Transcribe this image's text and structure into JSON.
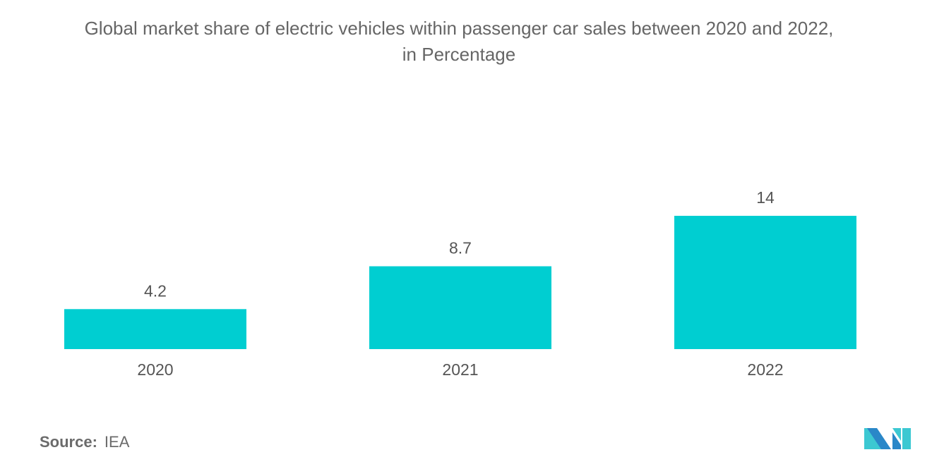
{
  "chart_data": {
    "type": "bar",
    "title": "Global market share of electric vehicles within passenger car sales between 2020 and 2022,",
    "subtitle": "in Percentage",
    "categories": [
      "2020",
      "2021",
      "2022"
    ],
    "values": [
      4.2,
      8.7,
      14
    ],
    "data_labels": [
      "4.2",
      "8.7",
      "14"
    ],
    "xlabel": "",
    "ylabel": "",
    "ylim": [
      0,
      14
    ],
    "grid": false,
    "legend": "none",
    "bar_color": "#00CED1"
  },
  "source": {
    "label": "Source:",
    "value": "IEA"
  },
  "logo": {
    "name": "Mordor Intelligence logo",
    "colors": [
      "#2A87C8",
      "#3CC8D2"
    ]
  }
}
